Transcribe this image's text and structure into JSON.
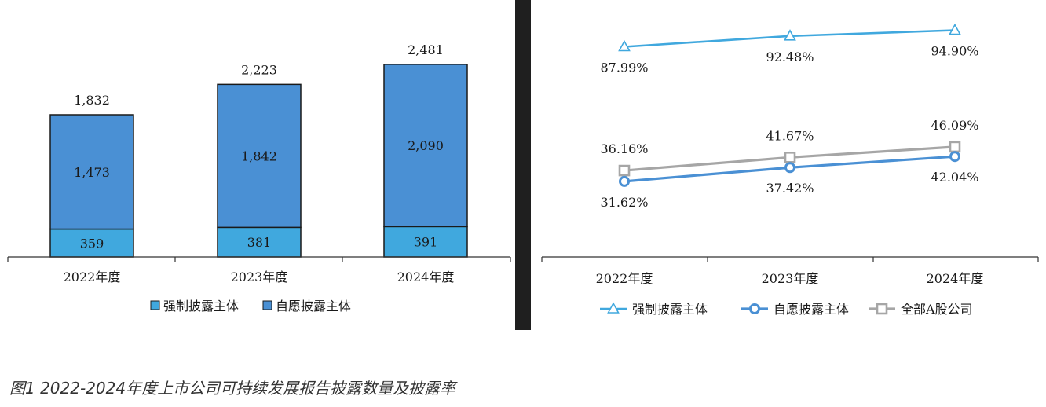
{
  "figure_caption": "图1 2022-2024年度上市公司可持续发展报告披露数量及披露率",
  "colors": {
    "mandatory": "#40a8de",
    "voluntary": "#4a90d4",
    "all_a_share": "#a6a6a6",
    "bar_border": "#1a1a1a",
    "axis": "#333333",
    "divider": "#1f1f1f"
  },
  "chart_data": [
    {
      "type": "bar",
      "stacked": true,
      "categories": [
        "2022年度",
        "2023年度",
        "2024年度"
      ],
      "series": [
        {
          "name": "强制披露主体",
          "values": [
            359,
            381,
            391
          ],
          "value_labels": [
            "359",
            "381",
            "391"
          ],
          "color": "#40a8de",
          "icon": "square-legend-icon"
        },
        {
          "name": "自愿披露主体",
          "values": [
            1473,
            1842,
            2090
          ],
          "value_labels": [
            "1,473",
            "1,842",
            "2,090"
          ],
          "color": "#4a90d4",
          "icon": "square-legend-icon"
        }
      ],
      "totals": [
        1832,
        2223,
        2481
      ],
      "total_labels": [
        "1,832",
        "2,223",
        "2,481"
      ],
      "ylim": [
        0,
        2900
      ],
      "grid": false,
      "legend_position": "bottom",
      "title": "",
      "xlabel": "",
      "ylabel": ""
    },
    {
      "type": "line",
      "categories": [
        "2022年度",
        "2023年度",
        "2024年度"
      ],
      "series": [
        {
          "name": "强制披露主体",
          "values": [
            87.99,
            92.48,
            94.9
          ],
          "value_labels": [
            "87.99%",
            "92.48%",
            "94.90%"
          ],
          "color": "#40a8de",
          "marker": "triangle"
        },
        {
          "name": "自愿披露主体",
          "values": [
            31.62,
            37.42,
            42.04
          ],
          "value_labels": [
            "31.62%",
            "37.42%",
            "42.04%"
          ],
          "color": "#4a90d4",
          "marker": "circle"
        },
        {
          "name": "全部A股公司",
          "values": [
            36.16,
            41.67,
            46.09
          ],
          "value_labels": [
            "36.16%",
            "41.67%",
            "46.09%"
          ],
          "color": "#a6a6a6",
          "marker": "square"
        }
      ],
      "ylim": [
        0,
        98.2
      ],
      "grid": false,
      "legend_position": "bottom",
      "title": "",
      "xlabel": "",
      "ylabel": ""
    }
  ]
}
